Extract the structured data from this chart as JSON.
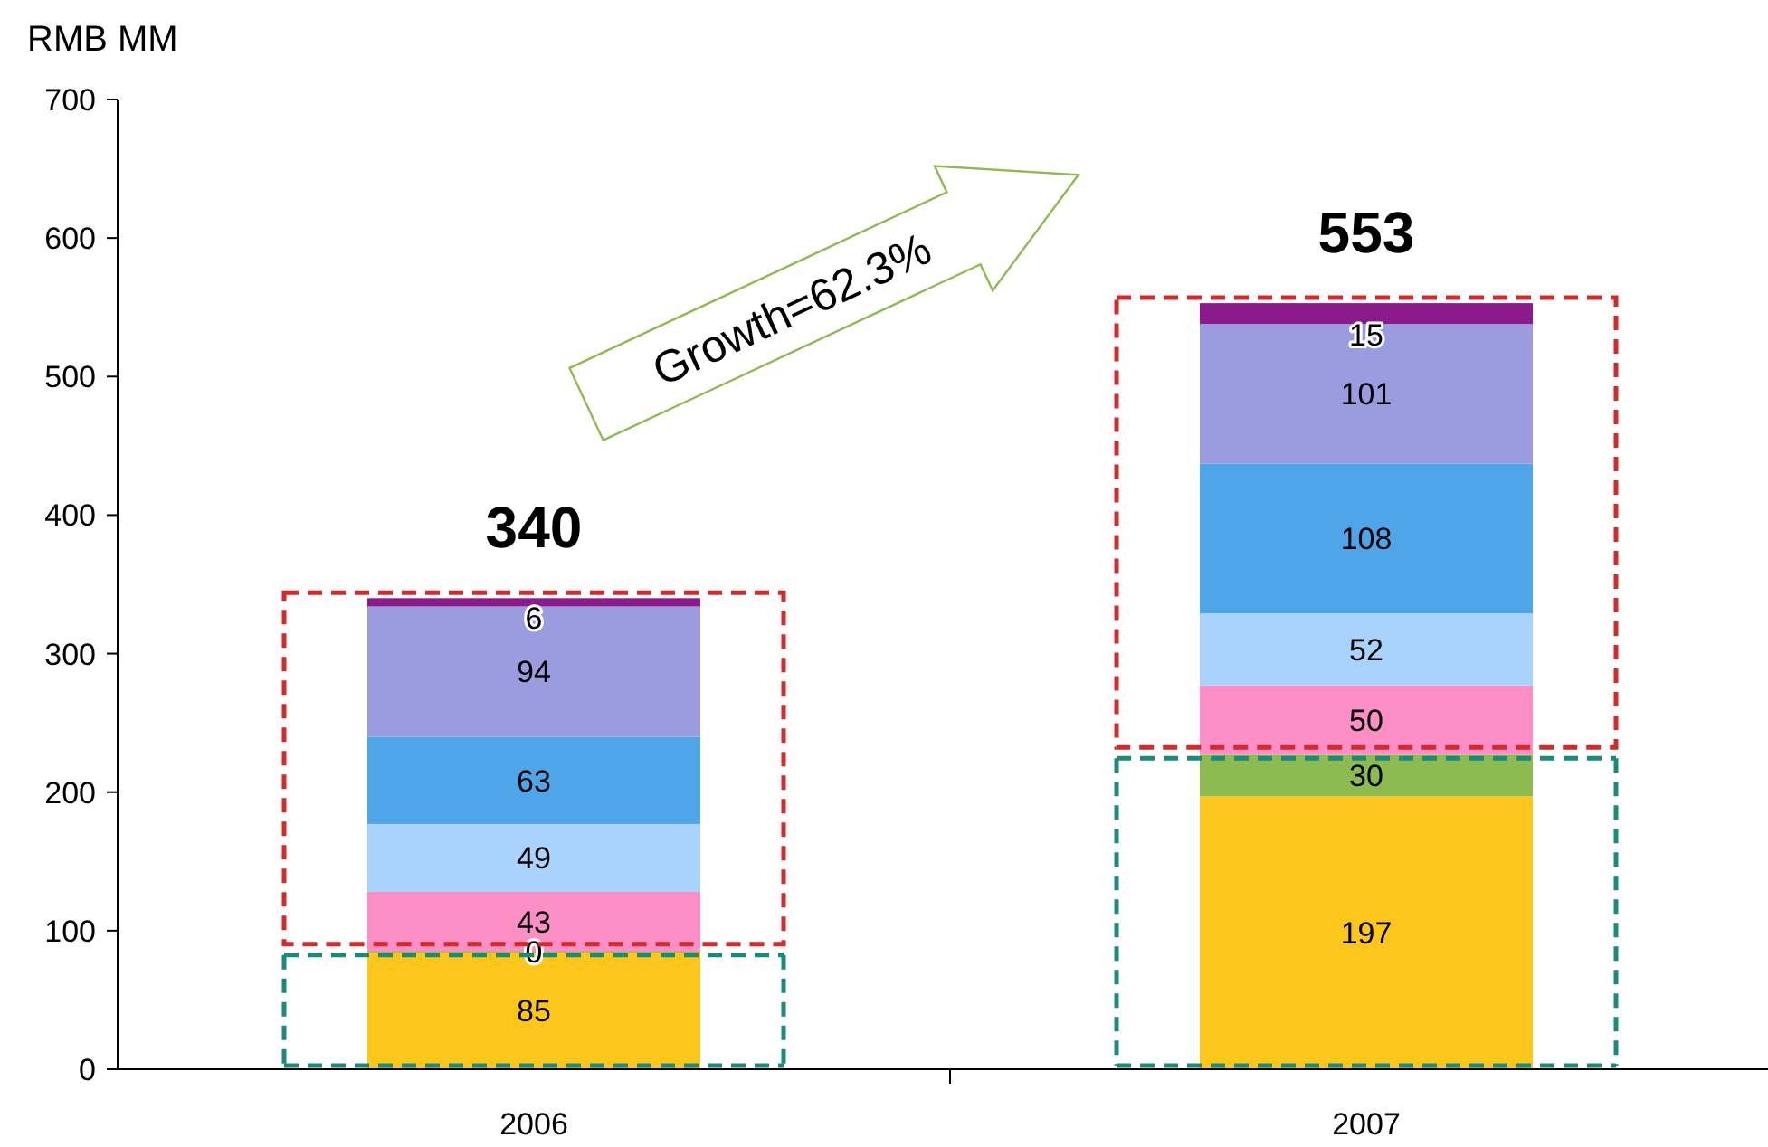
{
  "chart_data": {
    "type": "bar",
    "stacked": true,
    "ylabel": "RMB MM",
    "categories": [
      "2006",
      "2007"
    ],
    "ylim": [
      0,
      700
    ],
    "yticks": [
      0,
      100,
      200,
      300,
      400,
      500,
      600,
      700
    ],
    "data_labels": true,
    "totals": [
      "340",
      "553"
    ],
    "annotations": [
      "Growth=62.3%"
    ],
    "series": [
      {
        "color": "#fcc61a",
        "values": [
          85,
          197
        ]
      },
      {
        "color": "#8dbb4f",
        "values": [
          0,
          30
        ]
      },
      {
        "color": "#fc8fc6",
        "values": [
          43,
          50
        ]
      },
      {
        "color": "#a8d3fc",
        "values": [
          49,
          52
        ]
      },
      {
        "color": "#4ea6e8",
        "values": [
          63,
          108
        ]
      },
      {
        "color": "#9b9be0",
        "values": [
          94,
          101
        ]
      },
      {
        "color": "#8b1a8b",
        "values": [
          6,
          15
        ]
      }
    ]
  }
}
